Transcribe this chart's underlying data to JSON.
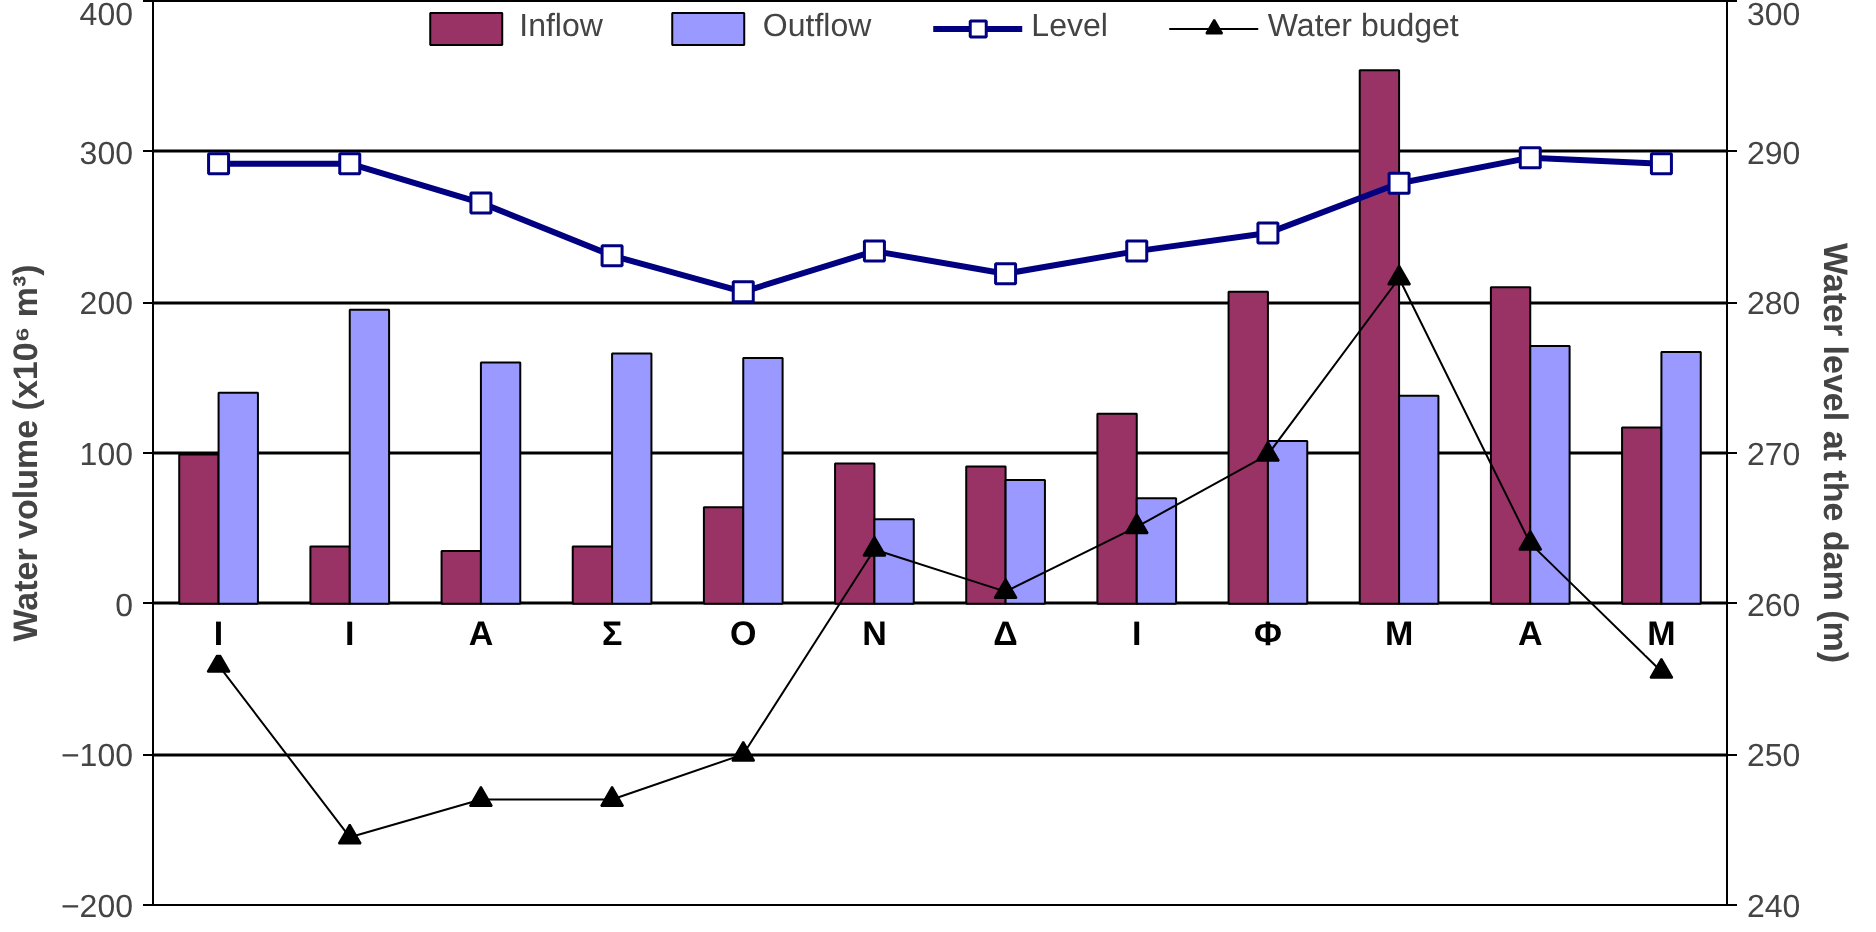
{
  "chart_data": {
    "type": "bar",
    "categories": [
      "Ι",
      "Ι",
      "Α",
      "Σ",
      "Ο",
      "Ν",
      "Δ",
      "Ι",
      "Φ",
      "Μ",
      "Α",
      "Μ"
    ],
    "ylabel": "Water volume (x10⁶ m³)",
    "y2label": "Water level at the dam (m)",
    "ylim": [
      -200,
      400
    ],
    "yticks": [
      -200,
      -100,
      0,
      100,
      200,
      300,
      400
    ],
    "y2lim": [
      240,
      300
    ],
    "y2ticks": [
      240,
      250,
      260,
      270,
      280,
      290,
      300
    ],
    "grid": "y",
    "legend": "top",
    "series": [
      {
        "name": "Inflow",
        "color": "#993366",
        "values": [
          99,
          38,
          35,
          38,
          64,
          93,
          91,
          126,
          207,
          354,
          210,
          117
        ]
      },
      {
        "name": "Outflow",
        "color": "#9999ff",
        "values": [
          140,
          195,
          160,
          166,
          163,
          56,
          82,
          70,
          108,
          138,
          171,
          167
        ]
      },
      {
        "name": "Level",
        "type": "line",
        "axis": "y2",
        "color": "#000080",
        "marker": "square",
        "values": [
          289.2,
          289.2,
          286.6,
          283.1,
          280.7,
          283.4,
          281.9,
          283.4,
          284.6,
          287.9,
          289.6,
          289.2
        ]
      },
      {
        "name": "Water budget",
        "type": "line",
        "color": "#000000",
        "marker": "triangle",
        "values": [
          -41,
          -155,
          -130,
          -130,
          -100,
          36,
          8,
          51,
          99,
          216,
          40,
          -45
        ]
      }
    ]
  }
}
